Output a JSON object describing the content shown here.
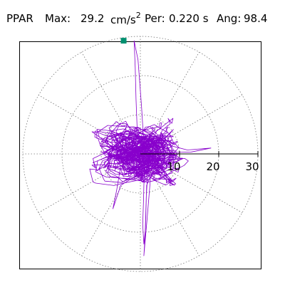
{
  "header": {
    "station": "PPAR",
    "max_label": "Max:",
    "max_value": "29.2",
    "max_unit": "cm/s",
    "max_unit_exp": "2",
    "per_label": "Per:",
    "per_value": "0.220 s",
    "ang_label": "Ang:",
    "ang_value": "98.4"
  },
  "chart_data": {
    "type": "scatter",
    "description_kind": "polar particle-motion trace",
    "radial_ticks": [
      10,
      20,
      30
    ],
    "radial_range": [
      0,
      30
    ],
    "angular_grid_step_deg": 30,
    "grid": true,
    "peak_marker": {
      "amplitude": 29.2,
      "angle_deg": 98.4,
      "color": "#009070"
    },
    "trace_color": "#8800cc"
  }
}
